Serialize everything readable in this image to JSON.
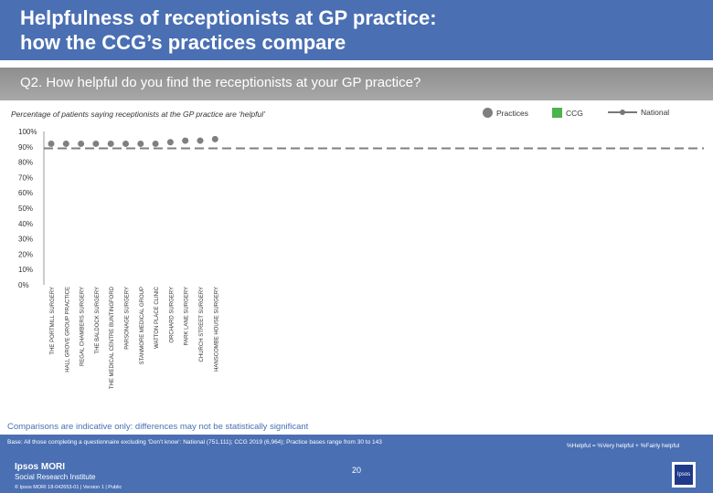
{
  "header": {
    "title": "Helpfulness of receptionists at GP practice:\nhow the CCG’s practices compare"
  },
  "question": "Q2. How helpful do you find the receptionists at your GP practice?",
  "subtitle": "Percentage of patients saying receptionists at the GP practice are ‘helpful’",
  "legend": {
    "practices": "Practices",
    "ccg": "CCG",
    "national": "National"
  },
  "colors": {
    "header": "#4a6fb3",
    "practice_dot": "#7f7f7f",
    "national_line": "#7f7f7f",
    "ccg": "#4db34d"
  },
  "chart_data": {
    "type": "scatter",
    "ylim": [
      0,
      100
    ],
    "yticks": [
      "0%",
      "10%",
      "20%",
      "30%",
      "40%",
      "50%",
      "60%",
      "70%",
      "80%",
      "90%",
      "100%"
    ],
    "categories": [
      "THE PORTMILL SURGERY",
      "HALL GROVE GROUP PRACTICE",
      "REGAL CHAMBERS SURGERY",
      "THE BALDOCK SURGERY",
      "THE MEDICAL CENTRE BUNTINGFORD",
      "PARSONAGE SURGERY",
      "STANMORE MEDICAL GROUP",
      "WATTON PLACE CLINIC",
      "ORCHARD SURGERY",
      "PARK LANE SURGERY",
      "CHURCH STREET SURGERY",
      "HANSCOMBE HOUSE SURGERY"
    ],
    "series": [
      {
        "name": "Practices",
        "values": [
          92,
          92,
          92,
          92,
          92,
          92,
          92,
          92,
          93,
          94,
          94,
          95
        ]
      },
      {
        "name": "National",
        "values": [
          89
        ]
      }
    ],
    "grid": false
  },
  "comparisons": "Comparisons are indicative only: differences may not be statistically significant",
  "footer": {
    "base": "Base: All those completing a questionnaire excluding ‘Don’t know’: National (751,111); CCG 2019 (6,964); Practice bases range from 30 to 143",
    "helpful_def": "%Helpful = %Very helpful + %Fairly helpful",
    "logo_line1": "Ipsos MORI",
    "logo_line2": "Social Research Institute",
    "copyright": "© Ipsos MORI     18-042653-01 | Version 1 | Public",
    "page_number": "20",
    "logo_box": "Ipsos"
  }
}
